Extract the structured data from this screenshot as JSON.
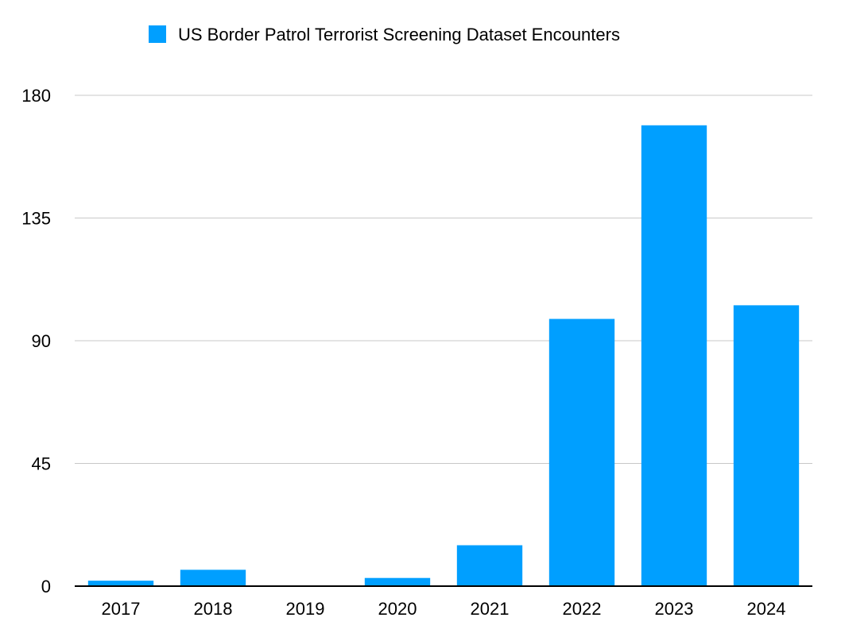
{
  "chart_data": {
    "type": "bar",
    "title": "",
    "xlabel": "",
    "ylabel": "",
    "legend": {
      "position": "top-center",
      "entries": [
        {
          "name": "US Border Patrol Terrorist Screening Dataset Encounters",
          "color": "#009FFF"
        }
      ]
    },
    "categories": [
      "2017",
      "2018",
      "2019",
      "2020",
      "2021",
      "2022",
      "2023",
      "2024"
    ],
    "series": [
      {
        "name": "US Border Patrol Terrorist Screening Dataset Encounters",
        "color": "#009FFF",
        "values": [
          2,
          6,
          0,
          3,
          15,
          98,
          169,
          103
        ]
      }
    ],
    "ylim": [
      0,
      180
    ],
    "yticks": [
      "0",
      "45",
      "90",
      "135",
      "180"
    ],
    "ytick_values": [
      0,
      45,
      90,
      135,
      180
    ],
    "grid": true,
    "colors": {
      "bar": "#009FFF",
      "grid": "#c8c8c8",
      "axis": "#000000"
    }
  }
}
